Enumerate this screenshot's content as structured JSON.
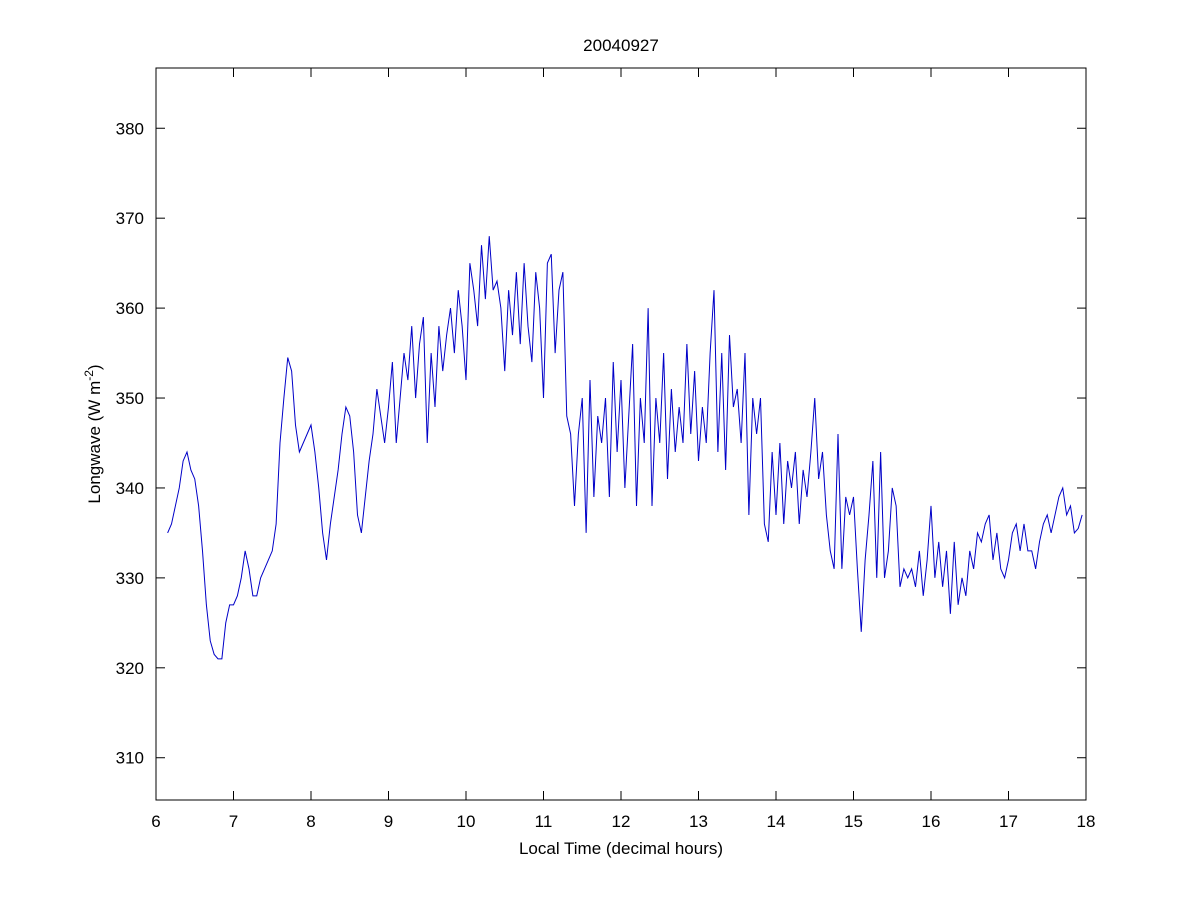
{
  "chart_data": {
    "type": "line",
    "title": "20040927",
    "x_label": "Local Time (decimal hours)",
    "y_label": [
      "Longwave (W m",
      "-2",
      ")"
    ],
    "xlim": [
      6,
      18
    ],
    "xticks": [
      6,
      7,
      8,
      9,
      10,
      11,
      12,
      13,
      14,
      15,
      16,
      17,
      18
    ],
    "ylim": [
      305.3,
      386.7
    ],
    "yticks": [
      310,
      320,
      330,
      340,
      350,
      360,
      370,
      380
    ],
    "grid": false,
    "series": [
      {
        "color": "#0000c8",
        "x": [
          6.15,
          6.2,
          6.25,
          6.3,
          6.35,
          6.4,
          6.45,
          6.5,
          6.55,
          6.6,
          6.65,
          6.7,
          6.75,
          6.8,
          6.85,
          6.9,
          6.95,
          7.0,
          7.05,
          7.1,
          7.15,
          7.2,
          7.25,
          7.3,
          7.35,
          7.4,
          7.45,
          7.5,
          7.55,
          7.6,
          7.65,
          7.7,
          7.75,
          7.8,
          7.85,
          7.9,
          7.95,
          8.0,
          8.05,
          8.1,
          8.15,
          8.2,
          8.25,
          8.3,
          8.35,
          8.4,
          8.45,
          8.5,
          8.55,
          8.6,
          8.65,
          8.7,
          8.75,
          8.8,
          8.85,
          8.9,
          8.95,
          9.0,
          9.05,
          9.1,
          9.15,
          9.2,
          9.25,
          9.3,
          9.35,
          9.4,
          9.45,
          9.5,
          9.55,
          9.6,
          9.65,
          9.7,
          9.75,
          9.8,
          9.85,
          9.9,
          9.95,
          10.0,
          10.05,
          10.1,
          10.15,
          10.2,
          10.25,
          10.3,
          10.35,
          10.4,
          10.45,
          10.5,
          10.55,
          10.6,
          10.65,
          10.7,
          10.75,
          10.8,
          10.85,
          10.9,
          10.95,
          11.0,
          11.05,
          11.1,
          11.15,
          11.2,
          11.25,
          11.3,
          11.35,
          11.4,
          11.45,
          11.5,
          11.55,
          11.6,
          11.65,
          11.7,
          11.75,
          11.8,
          11.85,
          11.9,
          11.95,
          12.0,
          12.05,
          12.1,
          12.15,
          12.2,
          12.25,
          12.3,
          12.35,
          12.4,
          12.45,
          12.5,
          12.55,
          12.6,
          12.65,
          12.7,
          12.75,
          12.8,
          12.85,
          12.9,
          12.95,
          13.0,
          13.05,
          13.1,
          13.15,
          13.2,
          13.25,
          13.3,
          13.35,
          13.4,
          13.45,
          13.5,
          13.55,
          13.6,
          13.65,
          13.7,
          13.75,
          13.8,
          13.85,
          13.9,
          13.95,
          14.0,
          14.05,
          14.1,
          14.15,
          14.2,
          14.25,
          14.3,
          14.35,
          14.4,
          14.45,
          14.5,
          14.55,
          14.6,
          14.65,
          14.7,
          14.75,
          14.8,
          14.85,
          14.9,
          14.95,
          15.0,
          15.05,
          15.1,
          15.15,
          15.2,
          15.25,
          15.3,
          15.35,
          15.4,
          15.45,
          15.5,
          15.55,
          15.6,
          15.65,
          15.7,
          15.75,
          15.8,
          15.85,
          15.9,
          15.95,
          16.0,
          16.05,
          16.1,
          16.15,
          16.2,
          16.25,
          16.3,
          16.35,
          16.4,
          16.45,
          16.5,
          16.55,
          16.6,
          16.65,
          16.7,
          16.75,
          16.8,
          16.85,
          16.9,
          16.95,
          17.0,
          17.05,
          17.1,
          17.15,
          17.2,
          17.25,
          17.3,
          17.35,
          17.4,
          17.45,
          17.5,
          17.55,
          17.6,
          17.65,
          17.7,
          17.75,
          17.8,
          17.85,
          17.9,
          17.95
        ],
        "values": [
          335,
          336,
          338,
          340,
          343,
          344,
          342,
          341,
          338,
          333,
          327,
          323,
          321.5,
          321,
          321,
          325,
          327,
          327,
          328,
          330,
          333,
          331,
          328,
          328,
          330,
          331,
          332,
          333,
          336,
          345,
          350,
          354.5,
          353,
          347,
          344,
          345,
          346,
          347,
          344,
          340,
          335,
          332,
          336,
          339,
          342,
          346,
          349,
          348,
          344,
          337,
          335,
          339,
          343,
          346,
          351,
          348,
          345,
          349,
          354,
          345,
          350,
          355,
          352,
          358,
          350,
          356,
          359,
          345,
          355,
          349,
          358,
          353,
          357,
          360,
          355,
          362,
          358,
          352,
          365,
          362,
          358,
          367,
          361,
          368,
          362,
          363,
          360,
          353,
          362,
          357,
          364,
          356,
          365,
          358,
          354,
          364,
          360,
          350,
          365,
          366,
          355,
          362,
          364,
          348,
          346,
          338,
          346,
          350,
          335,
          352,
          339,
          348,
          345,
          350,
          339,
          354,
          344,
          352,
          340,
          348,
          356,
          338,
          350,
          345,
          360,
          338,
          350,
          345,
          355,
          341,
          351,
          344,
          349,
          345,
          356,
          346,
          353,
          343,
          349,
          345,
          355,
          362,
          344,
          355,
          342,
          357,
          349,
          351,
          345,
          355,
          337,
          350,
          346,
          350,
          336,
          334,
          344,
          337,
          345,
          336,
          343,
          340,
          344,
          336,
          342,
          339,
          344,
          350,
          341,
          344,
          337,
          333,
          331,
          346,
          331,
          339,
          337,
          339,
          331,
          324,
          332,
          337,
          343,
          330,
          344,
          330,
          333,
          340,
          338,
          329,
          331,
          330,
          331,
          329,
          333,
          328,
          332,
          338,
          330,
          334,
          329,
          333,
          326,
          334,
          327,
          330,
          328,
          333,
          331,
          335,
          334,
          336,
          337,
          332,
          335,
          331,
          330,
          332,
          335,
          336,
          333,
          336,
          333,
          333,
          331,
          334,
          336,
          337,
          335,
          337,
          339,
          340,
          337,
          338,
          335,
          335.5,
          337
        ]
      }
    ]
  }
}
